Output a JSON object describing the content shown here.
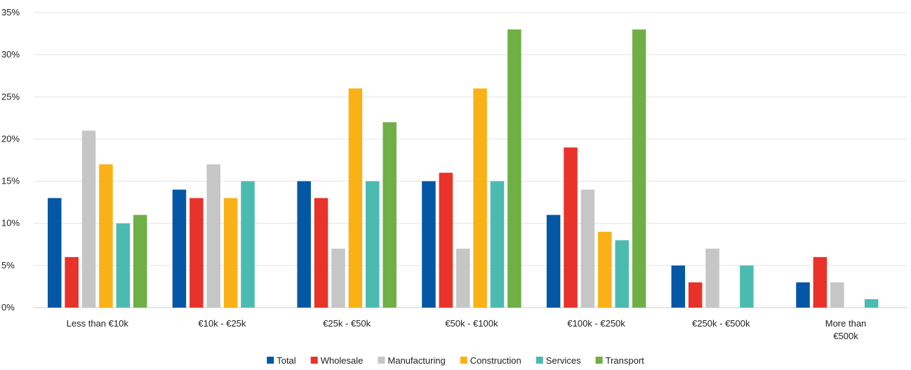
{
  "chart_data": {
    "type": "bar",
    "categories": [
      [
        "Less than €10k"
      ],
      [
        "€10k - €25k"
      ],
      [
        "€25k - €50k"
      ],
      [
        "€50k - €100k"
      ],
      [
        "€100k - €250k"
      ],
      [
        "€250k - €500k"
      ],
      [
        "More than",
        "€500k"
      ]
    ],
    "series": [
      {
        "name": "Total",
        "color": "#0457A4",
        "values": [
          13,
          14,
          15,
          15,
          11,
          5,
          3
        ]
      },
      {
        "name": "Wholesale",
        "color": "#E8322A",
        "values": [
          6,
          13,
          13,
          16,
          19,
          3,
          6
        ]
      },
      {
        "name": "Manufacturing",
        "color": "#C6C6C6",
        "values": [
          21,
          17,
          7,
          7,
          14,
          7,
          3
        ]
      },
      {
        "name": "Construction",
        "color": "#F9B116",
        "values": [
          17,
          13,
          26,
          26,
          9,
          null,
          null
        ]
      },
      {
        "name": "Services",
        "color": "#4BBBB1",
        "values": [
          10,
          15,
          15,
          15,
          8,
          5,
          1
        ]
      },
      {
        "name": "Transport",
        "color": "#6FAF46",
        "values": [
          11,
          null,
          22,
          33,
          33,
          null,
          null
        ]
      }
    ],
    "y_ticks": [
      "0%",
      "5%",
      "10%",
      "15%",
      "20%",
      "25%",
      "30%",
      "35%"
    ],
    "ylim": [
      0,
      35
    ],
    "y_unit": "%",
    "grid": true,
    "legend": "bottom-center"
  }
}
